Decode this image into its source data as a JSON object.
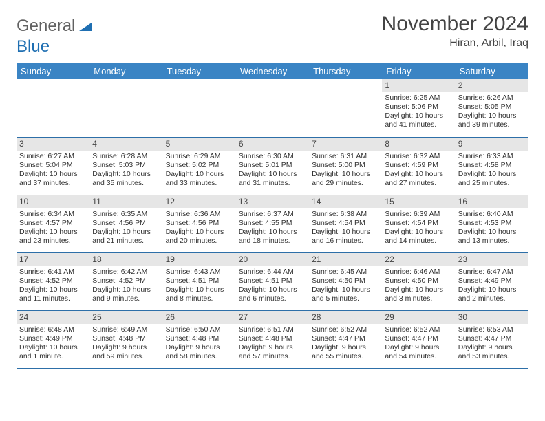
{
  "logo": {
    "word1": "General",
    "word2": "Blue"
  },
  "title": "November 2024",
  "location": "Hiran, Arbil, Iraq",
  "colors": {
    "header_bg": "#3a84c4",
    "daynum_bg": "#e6e6e6",
    "divider": "#2d6fa8"
  },
  "dayHeaders": [
    "Sunday",
    "Monday",
    "Tuesday",
    "Wednesday",
    "Thursday",
    "Friday",
    "Saturday"
  ],
  "weeks": [
    [
      {
        "day": "",
        "sunrise": "",
        "sunset": "",
        "daylight": ""
      },
      {
        "day": "",
        "sunrise": "",
        "sunset": "",
        "daylight": ""
      },
      {
        "day": "",
        "sunrise": "",
        "sunset": "",
        "daylight": ""
      },
      {
        "day": "",
        "sunrise": "",
        "sunset": "",
        "daylight": ""
      },
      {
        "day": "",
        "sunrise": "",
        "sunset": "",
        "daylight": ""
      },
      {
        "day": "1",
        "sunrise": "Sunrise: 6:25 AM",
        "sunset": "Sunset: 5:06 PM",
        "daylight": "Daylight: 10 hours and 41 minutes."
      },
      {
        "day": "2",
        "sunrise": "Sunrise: 6:26 AM",
        "sunset": "Sunset: 5:05 PM",
        "daylight": "Daylight: 10 hours and 39 minutes."
      }
    ],
    [
      {
        "day": "3",
        "sunrise": "Sunrise: 6:27 AM",
        "sunset": "Sunset: 5:04 PM",
        "daylight": "Daylight: 10 hours and 37 minutes."
      },
      {
        "day": "4",
        "sunrise": "Sunrise: 6:28 AM",
        "sunset": "Sunset: 5:03 PM",
        "daylight": "Daylight: 10 hours and 35 minutes."
      },
      {
        "day": "5",
        "sunrise": "Sunrise: 6:29 AM",
        "sunset": "Sunset: 5:02 PM",
        "daylight": "Daylight: 10 hours and 33 minutes."
      },
      {
        "day": "6",
        "sunrise": "Sunrise: 6:30 AM",
        "sunset": "Sunset: 5:01 PM",
        "daylight": "Daylight: 10 hours and 31 minutes."
      },
      {
        "day": "7",
        "sunrise": "Sunrise: 6:31 AM",
        "sunset": "Sunset: 5:00 PM",
        "daylight": "Daylight: 10 hours and 29 minutes."
      },
      {
        "day": "8",
        "sunrise": "Sunrise: 6:32 AM",
        "sunset": "Sunset: 4:59 PM",
        "daylight": "Daylight: 10 hours and 27 minutes."
      },
      {
        "day": "9",
        "sunrise": "Sunrise: 6:33 AM",
        "sunset": "Sunset: 4:58 PM",
        "daylight": "Daylight: 10 hours and 25 minutes."
      }
    ],
    [
      {
        "day": "10",
        "sunrise": "Sunrise: 6:34 AM",
        "sunset": "Sunset: 4:57 PM",
        "daylight": "Daylight: 10 hours and 23 minutes."
      },
      {
        "day": "11",
        "sunrise": "Sunrise: 6:35 AM",
        "sunset": "Sunset: 4:56 PM",
        "daylight": "Daylight: 10 hours and 21 minutes."
      },
      {
        "day": "12",
        "sunrise": "Sunrise: 6:36 AM",
        "sunset": "Sunset: 4:56 PM",
        "daylight": "Daylight: 10 hours and 20 minutes."
      },
      {
        "day": "13",
        "sunrise": "Sunrise: 6:37 AM",
        "sunset": "Sunset: 4:55 PM",
        "daylight": "Daylight: 10 hours and 18 minutes."
      },
      {
        "day": "14",
        "sunrise": "Sunrise: 6:38 AM",
        "sunset": "Sunset: 4:54 PM",
        "daylight": "Daylight: 10 hours and 16 minutes."
      },
      {
        "day": "15",
        "sunrise": "Sunrise: 6:39 AM",
        "sunset": "Sunset: 4:54 PM",
        "daylight": "Daylight: 10 hours and 14 minutes."
      },
      {
        "day": "16",
        "sunrise": "Sunrise: 6:40 AM",
        "sunset": "Sunset: 4:53 PM",
        "daylight": "Daylight: 10 hours and 13 minutes."
      }
    ],
    [
      {
        "day": "17",
        "sunrise": "Sunrise: 6:41 AM",
        "sunset": "Sunset: 4:52 PM",
        "daylight": "Daylight: 10 hours and 11 minutes."
      },
      {
        "day": "18",
        "sunrise": "Sunrise: 6:42 AM",
        "sunset": "Sunset: 4:52 PM",
        "daylight": "Daylight: 10 hours and 9 minutes."
      },
      {
        "day": "19",
        "sunrise": "Sunrise: 6:43 AM",
        "sunset": "Sunset: 4:51 PM",
        "daylight": "Daylight: 10 hours and 8 minutes."
      },
      {
        "day": "20",
        "sunrise": "Sunrise: 6:44 AM",
        "sunset": "Sunset: 4:51 PM",
        "daylight": "Daylight: 10 hours and 6 minutes."
      },
      {
        "day": "21",
        "sunrise": "Sunrise: 6:45 AM",
        "sunset": "Sunset: 4:50 PM",
        "daylight": "Daylight: 10 hours and 5 minutes."
      },
      {
        "day": "22",
        "sunrise": "Sunrise: 6:46 AM",
        "sunset": "Sunset: 4:50 PM",
        "daylight": "Daylight: 10 hours and 3 minutes."
      },
      {
        "day": "23",
        "sunrise": "Sunrise: 6:47 AM",
        "sunset": "Sunset: 4:49 PM",
        "daylight": "Daylight: 10 hours and 2 minutes."
      }
    ],
    [
      {
        "day": "24",
        "sunrise": "Sunrise: 6:48 AM",
        "sunset": "Sunset: 4:49 PM",
        "daylight": "Daylight: 10 hours and 1 minute."
      },
      {
        "day": "25",
        "sunrise": "Sunrise: 6:49 AM",
        "sunset": "Sunset: 4:48 PM",
        "daylight": "Daylight: 9 hours and 59 minutes."
      },
      {
        "day": "26",
        "sunrise": "Sunrise: 6:50 AM",
        "sunset": "Sunset: 4:48 PM",
        "daylight": "Daylight: 9 hours and 58 minutes."
      },
      {
        "day": "27",
        "sunrise": "Sunrise: 6:51 AM",
        "sunset": "Sunset: 4:48 PM",
        "daylight": "Daylight: 9 hours and 57 minutes."
      },
      {
        "day": "28",
        "sunrise": "Sunrise: 6:52 AM",
        "sunset": "Sunset: 4:47 PM",
        "daylight": "Daylight: 9 hours and 55 minutes."
      },
      {
        "day": "29",
        "sunrise": "Sunrise: 6:52 AM",
        "sunset": "Sunset: 4:47 PM",
        "daylight": "Daylight: 9 hours and 54 minutes."
      },
      {
        "day": "30",
        "sunrise": "Sunrise: 6:53 AM",
        "sunset": "Sunset: 4:47 PM",
        "daylight": "Daylight: 9 hours and 53 minutes."
      }
    ]
  ]
}
